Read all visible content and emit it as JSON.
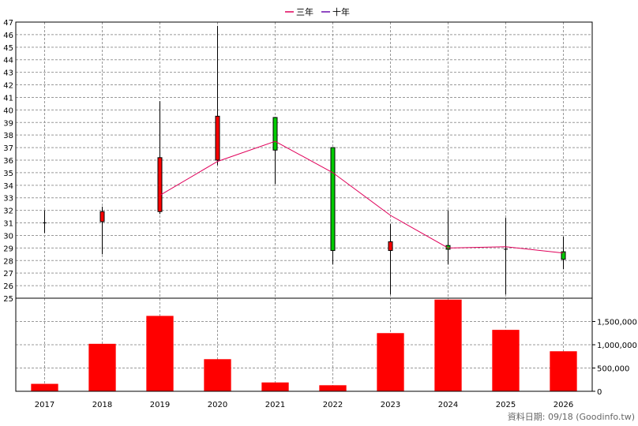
{
  "chart_data": [
    {
      "type": "candlestick",
      "categories": [
        "2017",
        "2018",
        "2019",
        "2020",
        "2021",
        "2022",
        "2023",
        "2024",
        "2025",
        "2026"
      ],
      "ohlc": [
        {
          "open": 31.0,
          "high": 32.0,
          "low": 30.2,
          "close": 31.0
        },
        {
          "open": 31.1,
          "high": 32.3,
          "low": 28.5,
          "close": 31.9
        },
        {
          "open": 31.9,
          "high": 40.7,
          "low": 31.7,
          "close": 36.2
        },
        {
          "open": 36.0,
          "high": 46.7,
          "low": 35.6,
          "close": 39.5
        },
        {
          "open": 39.4,
          "high": 39.4,
          "low": 34.1,
          "close": 36.8
        },
        {
          "open": 37.0,
          "high": 37.0,
          "low": 27.7,
          "close": 28.8
        },
        {
          "open": 28.8,
          "high": 30.9,
          "low": 25.3,
          "close": 29.5
        },
        {
          "open": 29.2,
          "high": 32.0,
          "low": 27.7,
          "close": 28.9
        },
        {
          "open": 28.9,
          "high": 31.4,
          "low": 25.3,
          "close": 28.9
        },
        {
          "open": 28.7,
          "high": 29.9,
          "low": 27.3,
          "close": 28.1
        }
      ],
      "series": [
        {
          "name": "三年",
          "color": "#e0005a",
          "x": [
            "2019",
            "2020",
            "2021",
            "2022",
            "2023",
            "2024",
            "2025",
            "2026"
          ],
          "values": [
            33.2,
            35.9,
            37.5,
            35.0,
            31.6,
            29.0,
            29.1,
            28.6
          ]
        },
        {
          "name": "十年",
          "color": "#6a0dad",
          "x": [],
          "values": []
        }
      ],
      "ylim": [
        25,
        47
      ],
      "yticks": [
        "25",
        "26",
        "27",
        "28",
        "29",
        "30",
        "31",
        "32",
        "33",
        "34",
        "35",
        "36",
        "37",
        "38",
        "39",
        "40",
        "41",
        "42",
        "43",
        "44",
        "45",
        "46",
        "47"
      ],
      "up_color": "#ff0000",
      "down_color": "#00cc00",
      "grid": true,
      "legend": "top-center"
    },
    {
      "type": "bar",
      "categories": [
        "2017",
        "2018",
        "2019",
        "2020",
        "2021",
        "2022",
        "2023",
        "2024",
        "2025",
        "2026"
      ],
      "values": [
        160000,
        1020000,
        1620000,
        690000,
        190000,
        130000,
        1250000,
        1970000,
        1320000,
        860000
      ],
      "color": "#ff0000",
      "ylim": [
        0,
        2000000
      ],
      "yticks": [
        "0",
        "500,000",
        "1,000,000",
        "1,500,000"
      ],
      "grid": true
    }
  ],
  "footer": "資料日期: 09/18  (Goodinfo.tw)"
}
